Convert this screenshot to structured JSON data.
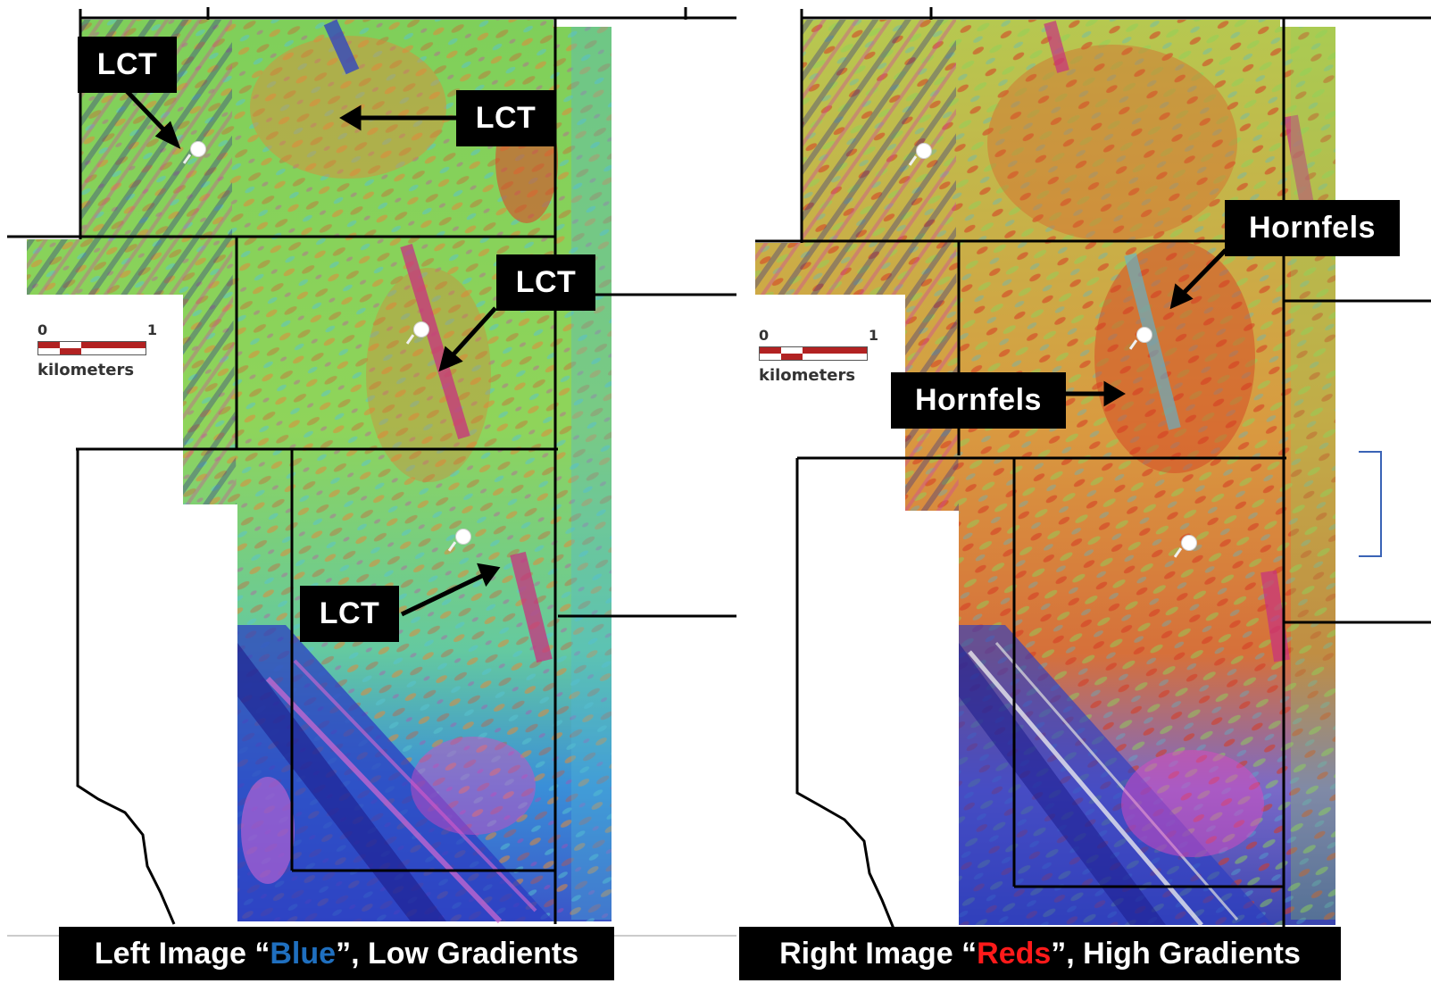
{
  "left": {
    "labels": [
      "LCT",
      "LCT",
      "LCT",
      "LCT"
    ],
    "caption": {
      "part1": "Left Image “",
      "highlight": "Blue",
      "part2": "”, Low Gradients"
    },
    "scale": {
      "start": "0",
      "end": "1",
      "unit": "kilometers"
    }
  },
  "right": {
    "labels": [
      "Hornfels",
      "Hornfels"
    ],
    "caption": {
      "part1": "Right Image “",
      "highlight": "Reds",
      "part2": "”, High Gradients"
    },
    "scale": {
      "start": "0",
      "end": "1",
      "unit": "kilometers"
    }
  },
  "colors": {
    "blue_highlight": "#1f6fbf",
    "red_highlight": "#ff1a1a",
    "label_bg": "#000000",
    "label_text": "#ffffff",
    "scale_red": "#b22222",
    "bracket_blue": "#3a63b6"
  }
}
